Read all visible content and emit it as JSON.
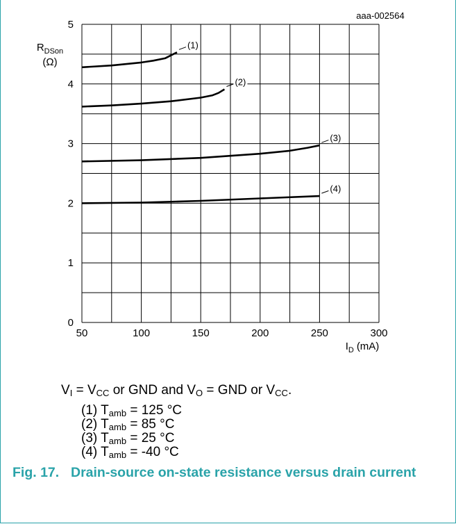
{
  "chart_data": {
    "type": "line",
    "id_label": "aaa-002564",
    "ylabel_main": "R",
    "ylabel_sub": "DSon",
    "ylabel_unit": "(Ω)",
    "xlabel_main": "I",
    "xlabel_sub": "D",
    "xlabel_unit": "(mA)",
    "xlim": [
      50,
      300
    ],
    "ylim": [
      0,
      5
    ],
    "x_ticks": [
      "50",
      "100",
      "150",
      "200",
      "250",
      "300"
    ],
    "y_ticks": [
      "0",
      "1",
      "2",
      "3",
      "4",
      "5"
    ],
    "grid": true,
    "series": [
      {
        "name": "(1)",
        "x": [
          50,
          75,
          100,
          110,
          120,
          125,
          130
        ],
        "y": [
          4.28,
          4.31,
          4.36,
          4.39,
          4.43,
          4.48,
          4.53
        ]
      },
      {
        "name": "(2)",
        "x": [
          50,
          75,
          100,
          125,
          150,
          160,
          165,
          170
        ],
        "y": [
          3.62,
          3.64,
          3.67,
          3.71,
          3.77,
          3.81,
          3.85,
          3.91
        ]
      },
      {
        "name": "(3)",
        "x": [
          50,
          100,
          150,
          200,
          225,
          240,
          250
        ],
        "y": [
          2.7,
          2.72,
          2.76,
          2.83,
          2.88,
          2.93,
          2.97
        ]
      },
      {
        "name": "(4)",
        "x": [
          50,
          100,
          150,
          200,
          250
        ],
        "y": [
          2.0,
          2.01,
          2.04,
          2.08,
          2.12
        ]
      }
    ]
  },
  "conditions": {
    "v_i": "V",
    "v_i_sub": "I",
    "eq1": " = V",
    "vcc_sub": "CC",
    "or_gnd_and": " or GND and V",
    "v_o_sub": "O",
    "eq2": " = GND or V",
    "vcc2_sub": "CC",
    "end": "."
  },
  "legend": [
    {
      "num": "(1) T",
      "sub": "amb",
      "value": " = 125 °C"
    },
    {
      "num": "(2) T",
      "sub": "amb",
      "value": " = 85 °C"
    },
    {
      "num": "(3) T",
      "sub": "amb",
      "value": " = 25 °C"
    },
    {
      "num": "(4) T",
      "sub": "amb",
      "value": " = -40 °C"
    }
  ],
  "caption": {
    "number": "Fig. 17.",
    "title": "Drain-source on-state resistance versus drain current"
  }
}
